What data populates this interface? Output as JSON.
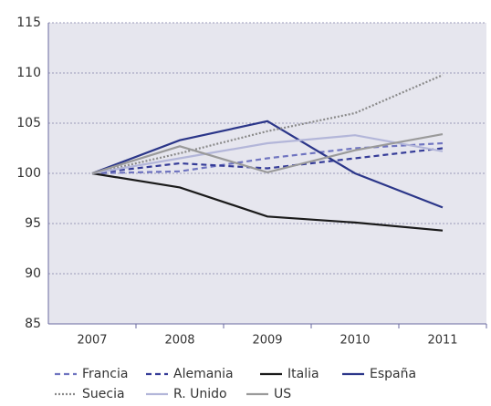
{
  "chart_data": {
    "type": "line",
    "categories": [
      "2007",
      "2008",
      "2009",
      "2010",
      "2011"
    ],
    "series": [
      {
        "name": "Francia",
        "color": "#6f74c0",
        "style": "dashed",
        "values": [
          100,
          100.2,
          101.5,
          102.5,
          103
        ]
      },
      {
        "name": "Alemania",
        "color": "#353c98",
        "style": "dashed",
        "values": [
          100,
          101,
          100.5,
          101.5,
          102.5
        ]
      },
      {
        "name": "Italia",
        "color": "#1a1a1a",
        "style": "solid",
        "values": [
          100,
          98.6,
          95.7,
          95.1,
          94.3
        ]
      },
      {
        "name": "España",
        "color": "#2b3689",
        "style": "solid",
        "values": [
          100,
          103.3,
          105.2,
          100,
          96.6
        ]
      },
      {
        "name": "Suecia",
        "color": "#8a8a8a",
        "style": "dotted",
        "values": [
          100,
          102,
          104.2,
          106,
          109.8
        ]
      },
      {
        "name": "R. Unido",
        "color": "#b3b6d9",
        "style": "solid",
        "values": [
          100,
          101.5,
          103,
          103.8,
          102.2
        ]
      },
      {
        "name": "US",
        "color": "#9a9a9a",
        "style": "solid",
        "values": [
          100,
          102.7,
          100.1,
          102.3,
          103.9
        ]
      }
    ],
    "ylim": [
      85,
      115
    ],
    "yticks": [
      85,
      90,
      95,
      100,
      105,
      110,
      115
    ],
    "grid": true,
    "legend": "bottom"
  }
}
